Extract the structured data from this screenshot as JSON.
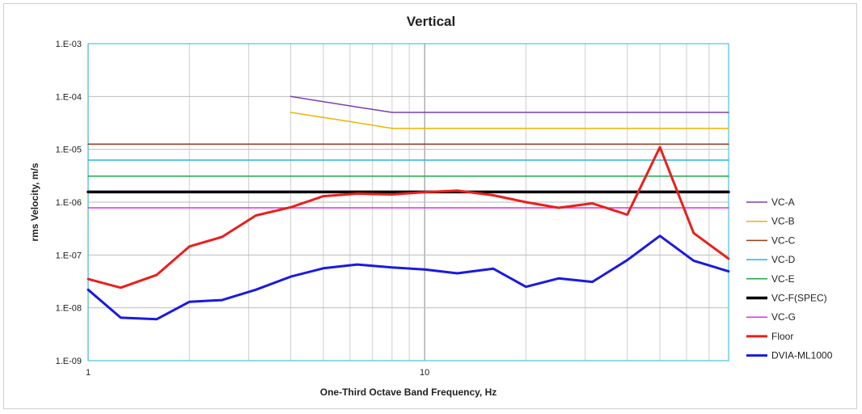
{
  "chart_data": {
    "type": "line",
    "title": "Vertical",
    "xlabel": "One-Third Octave Band Frequency, Hz",
    "ylabel": "rms Velocity, m/s",
    "x_scale": "log",
    "y_scale": "log",
    "xlim": [
      1,
      80
    ],
    "ylim": [
      1e-09,
      0.001
    ],
    "x_tick_labels": [
      {
        "value": 1,
        "label": "1"
      },
      {
        "value": 10,
        "label": "10"
      }
    ],
    "y_tick_labels": [
      {
        "value": 0.001,
        "label": "1.E-03"
      },
      {
        "value": 0.0001,
        "label": "1.E-04"
      },
      {
        "value": 1e-05,
        "label": "1.E-05"
      },
      {
        "value": 1e-06,
        "label": "1.E-06"
      },
      {
        "value": 1e-07,
        "label": "1.E-07"
      },
      {
        "value": 1e-08,
        "label": "1.E-08"
      },
      {
        "value": 1e-09,
        "label": "1.E-09"
      }
    ],
    "grid": true,
    "legend_position": "right",
    "series": [
      {
        "name": "VC-A",
        "color": "#7b3fb0",
        "width": 1.5,
        "x": [
          4,
          5,
          6.3,
          8,
          9,
          10,
          80
        ],
        "y": [
          0.0001,
          8e-05,
          6.3e-05,
          5e-05,
          5e-05,
          5e-05,
          5e-05
        ]
      },
      {
        "name": "VC-B",
        "color": "#f0b400",
        "width": 1.5,
        "x": [
          4,
          5,
          6.3,
          8,
          9,
          10,
          80
        ],
        "y": [
          5e-05,
          4e-05,
          3.2e-05,
          2.5e-05,
          2.5e-05,
          2.5e-05,
          2.5e-05
        ]
      },
      {
        "name": "VC-C",
        "color": "#9e3a1e",
        "width": 1.5,
        "x": [
          1,
          80
        ],
        "y": [
          1.25e-05,
          1.25e-05
        ]
      },
      {
        "name": "VC-D",
        "color": "#26b5e0",
        "width": 1.5,
        "x": [
          1,
          80
        ],
        "y": [
          6.25e-06,
          6.25e-06
        ]
      },
      {
        "name": "VC-E",
        "color": "#1fa84a",
        "width": 1.5,
        "x": [
          1,
          80
        ],
        "y": [
          3.1e-06,
          3.1e-06
        ]
      },
      {
        "name": "VC-F(SPEC)",
        "color": "#000000",
        "width": 3.5,
        "x": [
          1,
          80
        ],
        "y": [
          1.56e-06,
          1.56e-06
        ]
      },
      {
        "name": "VC-G",
        "color": "#e62ee6",
        "width": 1.5,
        "x": [
          1,
          80
        ],
        "y": [
          7.8e-07,
          7.8e-07
        ]
      },
      {
        "name": "Floor",
        "color": "#e8201c",
        "width": 3,
        "x": [
          1,
          1.25,
          1.6,
          2,
          2.5,
          3.15,
          4,
          5,
          6.3,
          8,
          10,
          12.5,
          16,
          20,
          25,
          31.5,
          40,
          50,
          63,
          80
        ],
        "y": [
          3.5e-08,
          2.4e-08,
          4.2e-08,
          1.45e-07,
          2.2e-07,
          5.6e-07,
          8e-07,
          1.3e-06,
          1.45e-06,
          1.4e-06,
          1.55e-06,
          1.65e-06,
          1.35e-06,
          1e-06,
          7.8e-07,
          9.5e-07,
          5.8e-07,
          1.1e-05,
          2.6e-07,
          8.5e-08
        ]
      },
      {
        "name": "DVIA-ML1000",
        "color": "#1a1ae0",
        "width": 3,
        "x": [
          1,
          1.25,
          1.6,
          2,
          2.5,
          3.15,
          4,
          5,
          6.3,
          8,
          10,
          12.5,
          16,
          20,
          25,
          31.5,
          40,
          50,
          63,
          80
        ],
        "y": [
          2.2e-08,
          6.5e-09,
          6.1e-09,
          1.3e-08,
          1.4e-08,
          2.2e-08,
          3.9e-08,
          5.6e-08,
          6.6e-08,
          5.8e-08,
          5.3e-08,
          4.5e-08,
          5.5e-08,
          2.5e-08,
          3.6e-08,
          3.1e-08,
          8e-08,
          2.3e-07,
          7.8e-08,
          4.9e-08
        ]
      }
    ]
  }
}
